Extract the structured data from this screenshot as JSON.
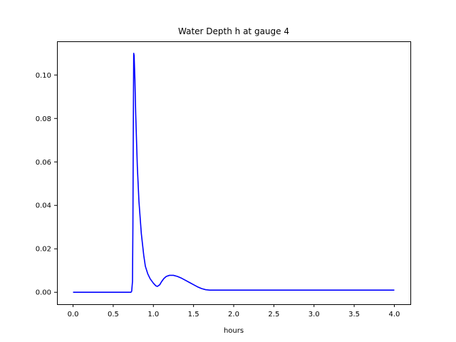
{
  "chart_data": {
    "type": "line",
    "title": "Water Depth h at gauge 4",
    "xlabel": "hours",
    "ylabel": "",
    "xlim": [
      -0.2,
      4.2
    ],
    "ylim": [
      -0.0055,
      0.1155
    ],
    "xticks": [
      0.0,
      0.5,
      1.0,
      1.5,
      2.0,
      2.5,
      3.0,
      3.5,
      4.0
    ],
    "xtick_labels": [
      "0.0",
      "0.5",
      "1.0",
      "1.5",
      "2.0",
      "2.5",
      "3.0",
      "3.5",
      "4.0"
    ],
    "yticks": [
      0.0,
      0.02,
      0.04,
      0.06,
      0.08,
      0.1
    ],
    "ytick_labels": [
      "0.00",
      "0.02",
      "0.04",
      "0.06",
      "0.08",
      "0.10"
    ],
    "grid": false,
    "legend": "none",
    "colors": {
      "line": "#0000ff",
      "axes": "#000000",
      "background": "#ffffff"
    },
    "series": [
      {
        "x": [
          0.0,
          0.5,
          0.72,
          0.73,
          0.74,
          0.745,
          0.75,
          0.755,
          0.76,
          0.77,
          0.78,
          0.8,
          0.82,
          0.85,
          0.88,
          0.9,
          0.93,
          0.96,
          1.0,
          1.03,
          1.05,
          1.08,
          1.1,
          1.13,
          1.16,
          1.2,
          1.25,
          1.3,
          1.35,
          1.4,
          1.45,
          1.5,
          1.55,
          1.6,
          1.65,
          1.7,
          1.75,
          2.0,
          2.5,
          3.0,
          3.5,
          4.0
        ],
        "y": [
          0.0,
          0.0,
          0.0,
          0.0005,
          0.005,
          0.03,
          0.075,
          0.11,
          0.109,
          0.098,
          0.082,
          0.058,
          0.042,
          0.027,
          0.017,
          0.012,
          0.0085,
          0.0062,
          0.0042,
          0.003,
          0.0027,
          0.0035,
          0.0048,
          0.0063,
          0.0073,
          0.0078,
          0.0078,
          0.0073,
          0.0065,
          0.0055,
          0.0045,
          0.0035,
          0.0025,
          0.0017,
          0.0012,
          0.001,
          0.001,
          0.001,
          0.001,
          0.001,
          0.001,
          0.001
        ]
      }
    ]
  }
}
